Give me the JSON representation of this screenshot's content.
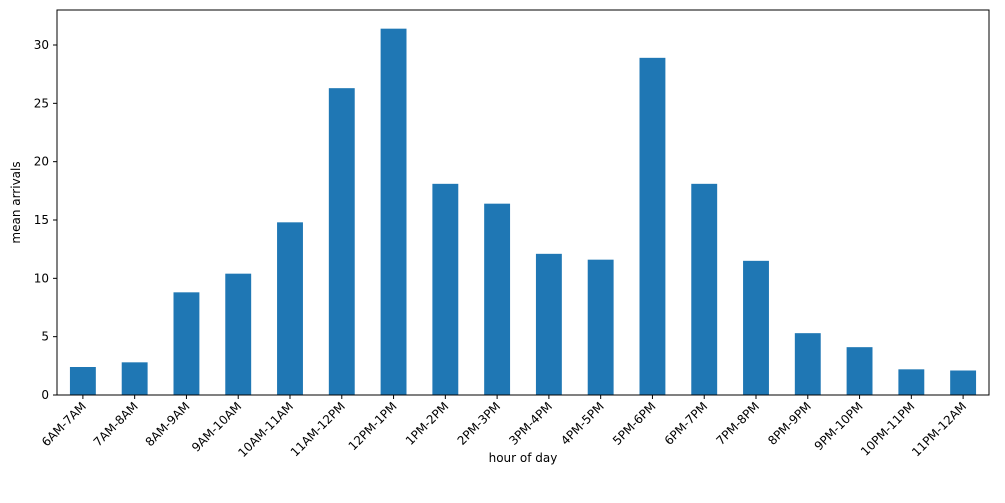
{
  "chart_data": {
    "type": "bar",
    "title": "",
    "xlabel": "hour of day",
    "ylabel": "mean arrivals",
    "categories": [
      "6AM-7AM",
      "7AM-8AM",
      "8AM-9AM",
      "9AM-10AM",
      "10AM-11AM",
      "11AM-12PM",
      "12PM-1PM",
      "1PM-2PM",
      "2PM-3PM",
      "3PM-4PM",
      "4PM-5PM",
      "5PM-6PM",
      "6PM-7PM",
      "7PM-8PM",
      "8PM-9PM",
      "9PM-10PM",
      "10PM-11PM",
      "11PM-12AM"
    ],
    "values": [
      2.4,
      2.8,
      8.8,
      10.4,
      14.8,
      26.3,
      31.4,
      18.1,
      16.4,
      12.1,
      11.6,
      28.9,
      18.1,
      11.5,
      5.3,
      4.1,
      2.2,
      2.1
    ],
    "yticks": [
      0,
      5,
      10,
      15,
      20,
      25,
      30
    ],
    "ylim": [
      0,
      33
    ],
    "bar_color": "#1f77b4",
    "grid": false,
    "legend": "none"
  }
}
